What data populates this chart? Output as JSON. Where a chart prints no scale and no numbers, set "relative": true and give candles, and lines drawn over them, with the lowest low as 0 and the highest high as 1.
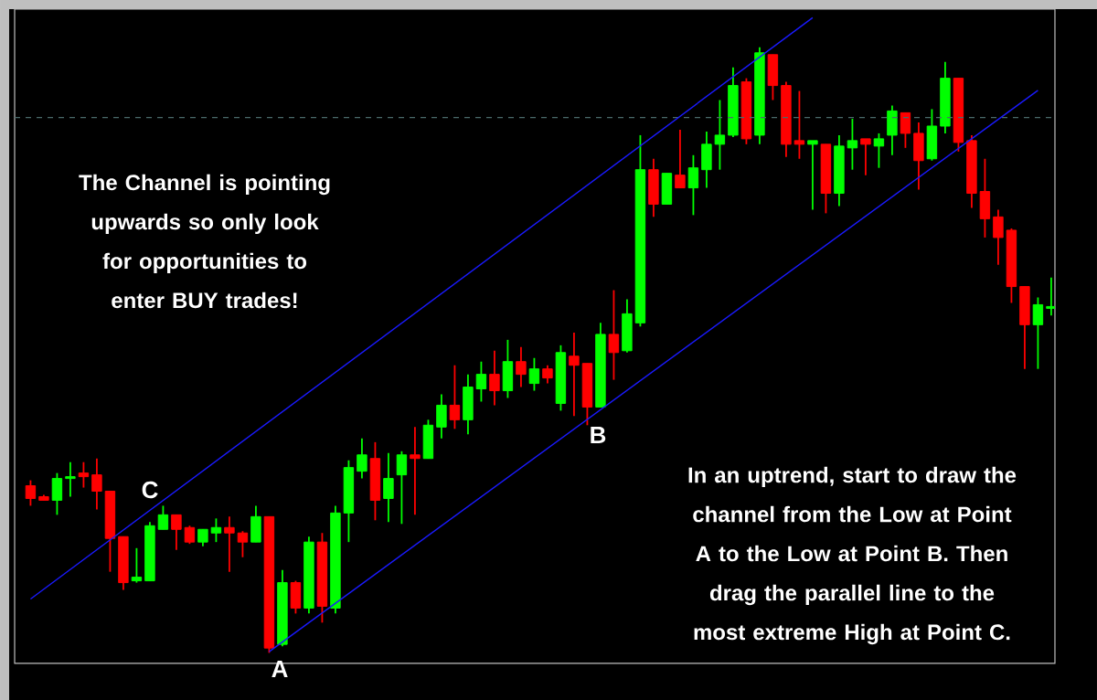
{
  "chart_data": {
    "type": "candlestick",
    "relative": true,
    "categories": [
      null,
      null,
      null,
      null,
      null,
      null,
      null,
      null,
      null,
      null,
      null,
      null,
      null,
      null,
      null,
      null,
      null,
      null,
      null,
      null,
      null,
      null,
      null,
      null,
      null,
      null,
      null,
      null,
      null,
      null,
      null,
      null,
      null,
      null,
      null,
      null,
      null,
      null,
      null,
      null,
      null,
      null,
      null,
      null,
      null,
      null,
      null,
      null,
      null,
      null,
      null,
      null,
      null,
      null,
      null,
      null,
      null,
      null,
      null,
      null,
      null,
      null,
      null,
      null,
      null,
      null,
      null,
      null,
      null,
      null,
      null,
      null,
      null,
      null,
      null,
      null,
      null,
      null
    ],
    "ohlc": [
      [
        0.276,
        0.285,
        0.243,
        0.255
      ],
      [
        0.258,
        0.261,
        0.252,
        0.252
      ],
      [
        0.252,
        0.297,
        0.228,
        0.288
      ],
      [
        0.288,
        0.315,
        0.258,
        0.291
      ],
      [
        0.297,
        0.315,
        0.273,
        0.291
      ],
      [
        0.294,
        0.321,
        0.237,
        0.267
      ],
      [
        0.267,
        0.267,
        0.134,
        0.189
      ],
      [
        0.192,
        0.192,
        0.104,
        0.116
      ],
      [
        0.119,
        0.173,
        0.116,
        0.125
      ],
      [
        0.119,
        0.216,
        0.119,
        0.21
      ],
      [
        0.204,
        0.243,
        0.204,
        0.228
      ],
      [
        0.228,
        0.228,
        0.17,
        0.204
      ],
      [
        0.207,
        0.21,
        0.18,
        0.183
      ],
      [
        0.183,
        0.204,
        0.176,
        0.204
      ],
      [
        0.198,
        0.222,
        0.183,
        0.207
      ],
      [
        0.207,
        0.225,
        0.134,
        0.198
      ],
      [
        0.198,
        0.201,
        0.158,
        0.183
      ],
      [
        0.183,
        0.243,
        0.183,
        0.225
      ],
      [
        0.225,
        0.225,
        0,
        0.008
      ],
      [
        0.014,
        0.137,
        0.011,
        0.116
      ],
      [
        0.116,
        0.119,
        0.065,
        0.074
      ],
      [
        0.074,
        0.192,
        0.065,
        0.183
      ],
      [
        0.183,
        0.198,
        0.05,
        0.077
      ],
      [
        0.074,
        0.243,
        0.065,
        0.231
      ],
      [
        0.231,
        0.318,
        0.183,
        0.306
      ],
      [
        0.3,
        0.354,
        0.288,
        0.327
      ],
      [
        0.321,
        0.348,
        0.219,
        0.252
      ],
      [
        0.255,
        0.33,
        0.216,
        0.288
      ],
      [
        0.294,
        0.333,
        0.213,
        0.327
      ],
      [
        0.327,
        0.373,
        0.228,
        0.321
      ],
      [
        0.321,
        0.385,
        0.321,
        0.376
      ],
      [
        0.373,
        0.427,
        0.354,
        0.409
      ],
      [
        0.409,
        0.475,
        0.37,
        0.385
      ],
      [
        0.385,
        0.46,
        0.361,
        0.439
      ],
      [
        0.436,
        0.481,
        0.415,
        0.46
      ],
      [
        0.46,
        0.499,
        0.409,
        0.433
      ],
      [
        0.433,
        0.517,
        0.421,
        0.481
      ],
      [
        0.481,
        0.505,
        0.439,
        0.46
      ],
      [
        0.445,
        0.487,
        0.433,
        0.469
      ],
      [
        0.469,
        0.475,
        0.445,
        0.454
      ],
      [
        0.412,
        0.508,
        0.4,
        0.496
      ],
      [
        0.49,
        0.529,
        0.391,
        0.475
      ],
      [
        0.478,
        0.478,
        0.376,
        0.406
      ],
      [
        0.406,
        0.545,
        0.406,
        0.526
      ],
      [
        0.526,
        0.599,
        0.451,
        0.496
      ],
      [
        0.499,
        0.584,
        0.496,
        0.56
      ],
      [
        0.545,
        0.855,
        0.539,
        0.798
      ],
      [
        0.798,
        0.816,
        0.72,
        0.741
      ],
      [
        0.741,
        0.792,
        0.741,
        0.792
      ],
      [
        0.789,
        0.864,
        0.768,
        0.768
      ],
      [
        0.768,
        0.822,
        0.723,
        0.801
      ],
      [
        0.798,
        0.861,
        0.768,
        0.84
      ],
      [
        0.84,
        0.913,
        0.798,
        0.855
      ],
      [
        0.855,
        0.967,
        0.852,
        0.937
      ],
      [
        0.943,
        0.949,
        0.84,
        0.849
      ],
      [
        0.855,
        1,
        0.84,
        0.991
      ],
      [
        0.988,
        0.988,
        0.913,
        0.937
      ],
      [
        0.937,
        0.943,
        0.819,
        0.84
      ],
      [
        0.846,
        0.928,
        0.816,
        0.84
      ],
      [
        0.84,
        0.846,
        0.732,
        0.846
      ],
      [
        0.84,
        0.84,
        0.726,
        0.759
      ],
      [
        0.759,
        0.855,
        0.738,
        0.837
      ],
      [
        0.834,
        0.882,
        0.798,
        0.846
      ],
      [
        0.849,
        0.849,
        0.789,
        0.84
      ],
      [
        0.837,
        0.858,
        0.801,
        0.849
      ],
      [
        0.855,
        0.904,
        0.822,
        0.895
      ],
      [
        0.892,
        0.892,
        0.834,
        0.858
      ],
      [
        0.858,
        0.876,
        0.765,
        0.813
      ],
      [
        0.816,
        0.898,
        0.813,
        0.87
      ],
      [
        0.87,
        0.976,
        0.858,
        0.949
      ],
      [
        0.949,
        0.949,
        0.828,
        0.843
      ],
      [
        0.846,
        0.855,
        0.735,
        0.759
      ],
      [
        0.762,
        0.816,
        0.686,
        0.717
      ],
      [
        0.72,
        0.732,
        0.641,
        0.686
      ],
      [
        0.698,
        0.701,
        0.578,
        0.605
      ],
      [
        0.605,
        0.605,
        0.469,
        0.542
      ],
      [
        0.542,
        0.587,
        0.469,
        0.575
      ],
      [
        0.569,
        0.62,
        0.557,
        0.572
      ]
    ],
    "colors": [
      "#ff0000",
      "#ff0000",
      "#00ff00",
      "#00ff00",
      "#ff0000",
      "#ff0000",
      "#ff0000",
      "#ff0000",
      "#00ff00",
      "#00ff00",
      "#00ff00",
      "#ff0000",
      "#ff0000",
      "#00ff00",
      "#00ff00",
      "#ff0000",
      "#ff0000",
      "#00ff00",
      "#ff0000",
      "#00ff00",
      "#ff0000",
      "#00ff00",
      "#ff0000",
      "#00ff00",
      "#00ff00",
      "#00ff00",
      "#ff0000",
      "#00ff00",
      "#00ff00",
      "#ff0000",
      "#00ff00",
      "#00ff00",
      "#ff0000",
      "#00ff00",
      "#00ff00",
      "#ff0000",
      "#00ff00",
      "#ff0000",
      "#00ff00",
      "#ff0000",
      "#00ff00",
      "#ff0000",
      "#ff0000",
      "#00ff00",
      "#ff0000",
      "#00ff00",
      "#00ff00",
      "#ff0000",
      "#00ff00",
      "#ff0000",
      "#00ff00",
      "#00ff00",
      "#00ff00",
      "#00ff00",
      "#ff0000",
      "#00ff00",
      "#ff0000",
      "#ff0000",
      "#ff0000",
      "#00ff00",
      "#ff0000",
      "#00ff00",
      "#00ff00",
      "#ff0000",
      "#00ff00",
      "#00ff00",
      "#ff0000",
      "#ff0000",
      "#00ff00",
      "#00ff00",
      "#ff0000",
      "#ff0000",
      "#ff0000",
      "#ff0000",
      "#ff0000",
      "#ff0000",
      "#00ff00",
      "#00ff00"
    ],
    "series": [
      {
        "type": "line",
        "color": "#1a1aff",
        "values": [
          0.089,
          null,
          null,
          null,
          null,
          null,
          null,
          null,
          null,
          null,
          null,
          null,
          null,
          null,
          null,
          null,
          null,
          null,
          null,
          null,
          null,
          null,
          null,
          null,
          null,
          null,
          null,
          null,
          null,
          null,
          null,
          null,
          null,
          null,
          null,
          null,
          null,
          null,
          null,
          null,
          null,
          null,
          null,
          null,
          null,
          null,
          null,
          null,
          null,
          null,
          null,
          null,
          null,
          null,
          null,
          null,
          null,
          null,
          null,
          1.049,
          null,
          null,
          null,
          null,
          null,
          null,
          null,
          null,
          null,
          null,
          null,
          null,
          null,
          null,
          null,
          null,
          null,
          null
        ]
      },
      {
        "type": "line",
        "color": "#1a1aff",
        "values": [
          null,
          null,
          null,
          null,
          null,
          null,
          null,
          null,
          null,
          null,
          null,
          null,
          null,
          null,
          null,
          null,
          null,
          null,
          0.002,
          null,
          null,
          null,
          null,
          null,
          null,
          null,
          null,
          null,
          null,
          null,
          null,
          null,
          null,
          null,
          null,
          null,
          null,
          null,
          null,
          null,
          null,
          null,
          null,
          null,
          null,
          null,
          null,
          null,
          null,
          null,
          null,
          null,
          null,
          null,
          null,
          null,
          null,
          null,
          null,
          null,
          null,
          null,
          null,
          null,
          null,
          null,
          null,
          null,
          null,
          null,
          null,
          null,
          null,
          null,
          null,
          null,
          0.929,
          null
        ]
      }
    ],
    "ref_lines": [
      {
        "axis": "y",
        "value": 0.884,
        "color": "#4a6a6a",
        "line_style": "dashed"
      }
    ],
    "annotations": [
      "The Channel is pointing upwards so only look for opportunities to enter BUY trades!",
      "In an uptrend, start to draw the channel from the Low at Point A to the Low at Point B. Then drag the parallel line to the most extreme High at Point C.",
      "A",
      "B",
      "C"
    ]
  }
}
